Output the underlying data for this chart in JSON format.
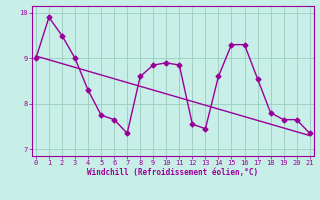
{
  "x_data": [
    0,
    1,
    2,
    3,
    4,
    5,
    6,
    7,
    8,
    9,
    10,
    11,
    12,
    13,
    14,
    15,
    16,
    17,
    18,
    19,
    20,
    21
  ],
  "y_main": [
    9.0,
    9.9,
    9.5,
    9.0,
    8.3,
    7.75,
    7.65,
    7.35,
    8.6,
    8.85,
    8.9,
    8.85,
    7.55,
    7.45,
    8.6,
    9.3,
    9.3,
    8.55,
    7.8,
    7.65,
    7.65,
    7.35
  ],
  "trend_x": [
    0,
    21
  ],
  "trend_y": [
    9.05,
    7.3
  ],
  "xlim": [
    -0.3,
    21.3
  ],
  "ylim": [
    6.85,
    10.15
  ],
  "yticks": [
    7,
    8,
    9,
    10
  ],
  "xticks": [
    0,
    1,
    2,
    3,
    4,
    5,
    6,
    7,
    8,
    9,
    10,
    11,
    12,
    13,
    14,
    15,
    16,
    17,
    18,
    19,
    20,
    21
  ],
  "xlabel": "Windchill (Refroidissement éolien,°C)",
  "line_color": "#990099",
  "bg_color": "#c8eee8",
  "grid_color": "#99ccbb",
  "marker": "D",
  "marker_size": 2.5,
  "line_width": 1.0
}
